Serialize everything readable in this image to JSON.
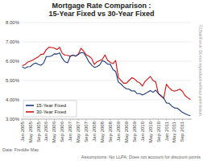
{
  "chart_data": {
    "type": "line",
    "title": "Mortgage Rate Comparison :\n15-Year Fixed vs 30-Year Fixed",
    "categories": [
      "Jan\n2005",
      null,
      null,
      "May\n2005",
      null,
      null,
      "Sep\n2005",
      null,
      null,
      "Jan\n2006",
      null,
      null,
      "May\n2006",
      null,
      null,
      "Sep\n2006",
      null,
      null,
      "Jan\n2007",
      null,
      null,
      "May\n2007",
      null,
      null,
      "Sep\n2007",
      null,
      null,
      "Jan\n2008",
      null,
      null,
      "May\n2008",
      null,
      null,
      "Sep\n2008",
      null,
      null,
      "Jan\n2009",
      null,
      null,
      "May\n2009",
      null,
      null,
      "Sep\n2009",
      null,
      null,
      "Jan\n2010",
      null,
      null,
      "May\n2010",
      null,
      null,
      "Sep\n2010",
      null,
      null,
      "Jan\n2011",
      null,
      null,
      "May\n2011",
      null,
      null,
      "Sep\n2011",
      null,
      null,
      null
    ],
    "series": [
      {
        "name": "15-Year Fixed",
        "color": "#1a3a7a",
        "values": [
          5.71,
          5.63,
          5.71,
          5.72,
          5.84,
          5.91,
          5.83,
          5.79,
          5.9,
          6.24,
          6.24,
          6.27,
          6.38,
          6.37,
          6.43,
          6.15,
          5.97,
          5.92,
          6.26,
          6.31,
          6.26,
          6.35,
          6.45,
          6.43,
          6.22,
          5.96,
          5.8,
          5.68,
          5.72,
          5.8,
          6.03,
          5.97,
          5.85,
          5.84,
          5.56,
          5.47,
          4.92,
          4.82,
          4.67,
          4.57,
          4.55,
          4.46,
          4.47,
          4.32,
          4.32,
          4.25,
          4.31,
          4.4,
          4.48,
          4.39,
          4.5,
          4.33,
          4.22,
          4.09,
          3.84,
          3.82,
          3.68,
          3.58,
          3.57,
          3.47,
          3.35,
          3.28,
          3.22,
          3.18
        ]
      },
      {
        "name": "30-Year Fixed",
        "color": "#cc1111",
        "values": [
          5.77,
          5.82,
          5.95,
          6.0,
          6.06,
          6.15,
          6.22,
          6.35,
          6.37,
          6.6,
          6.72,
          6.71,
          6.68,
          6.6,
          6.72,
          6.4,
          6.31,
          6.3,
          6.25,
          6.32,
          6.26,
          6.37,
          6.67,
          6.52,
          6.32,
          6.26,
          6.14,
          5.83,
          5.97,
          6.03,
          6.09,
          6.32,
          6.04,
          5.94,
          5.87,
          6.04,
          5.16,
          5.0,
          4.86,
          4.86,
          5.0,
          5.14,
          5.09,
          4.95,
          4.88,
          4.71,
          4.95,
          5.08,
          5.21,
          5.0,
          4.93,
          4.32,
          4.19,
          4.07,
          4.81,
          4.63,
          4.5,
          4.45,
          4.49,
          4.55,
          4.45,
          4.22,
          4.11,
          4.01
        ]
      }
    ],
    "ylim": [
      3.0,
      8.0
    ],
    "yticks": [
      {
        "value": 3,
        "label": "3.00%"
      },
      {
        "value": 4,
        "label": "4.00%"
      },
      {
        "value": 5,
        "label": "5.00%"
      },
      {
        "value": 6,
        "label": "6.00%"
      },
      {
        "value": 7,
        "label": "7.00%"
      },
      {
        "value": 8,
        "label": "8.00%"
      }
    ],
    "grid": true,
    "legend": "lower left",
    "annotations": [
      "Data: Freddie Mac",
      "Assumptions: No LLPA; Does not account for discount points",
      "©ChartForce: Do not reproduce without permission."
    ]
  }
}
